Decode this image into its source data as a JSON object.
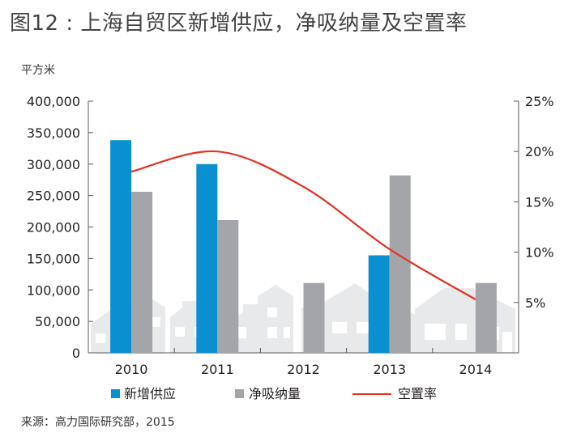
{
  "title": "图12 : 上海自贸区新增供应，净吸纳量及空置率",
  "unit_label": "平方米",
  "source": "来源：高力国际研究部，2015",
  "colors": {
    "supply": "#0a8fd1",
    "absorption": "#a4a5a8",
    "vacancy": "#e23223",
    "axis": "#58595b",
    "houses": "#e8e9ea"
  },
  "chart_data": {
    "type": "bar",
    "categories": [
      "2010",
      "2011",
      "2012",
      "2013",
      "2014"
    ],
    "series": [
      {
        "name": "新增供应",
        "type": "bar",
        "axis": "left",
        "values": [
          338000,
          300000,
          0,
          155000,
          0
        ]
      },
      {
        "name": "净吸纳量",
        "type": "bar",
        "axis": "left",
        "values": [
          256000,
          211000,
          111000,
          282000,
          111000
        ]
      },
      {
        "name": "空置率",
        "type": "line",
        "axis": "right",
        "values": [
          18.0,
          20.0,
          16.5,
          10.3,
          5.3
        ]
      }
    ],
    "ylim_left": [
      0,
      400000
    ],
    "yticks_left": [
      "0",
      "50,000",
      "100,000",
      "150,000",
      "200,000",
      "250,000",
      "300,000",
      "350,000",
      "400,000"
    ],
    "ylim_right": [
      0,
      25
    ],
    "yticks_right": [
      "5%",
      "10%",
      "15%",
      "20%",
      "25%"
    ],
    "legend_position": "bottom"
  }
}
